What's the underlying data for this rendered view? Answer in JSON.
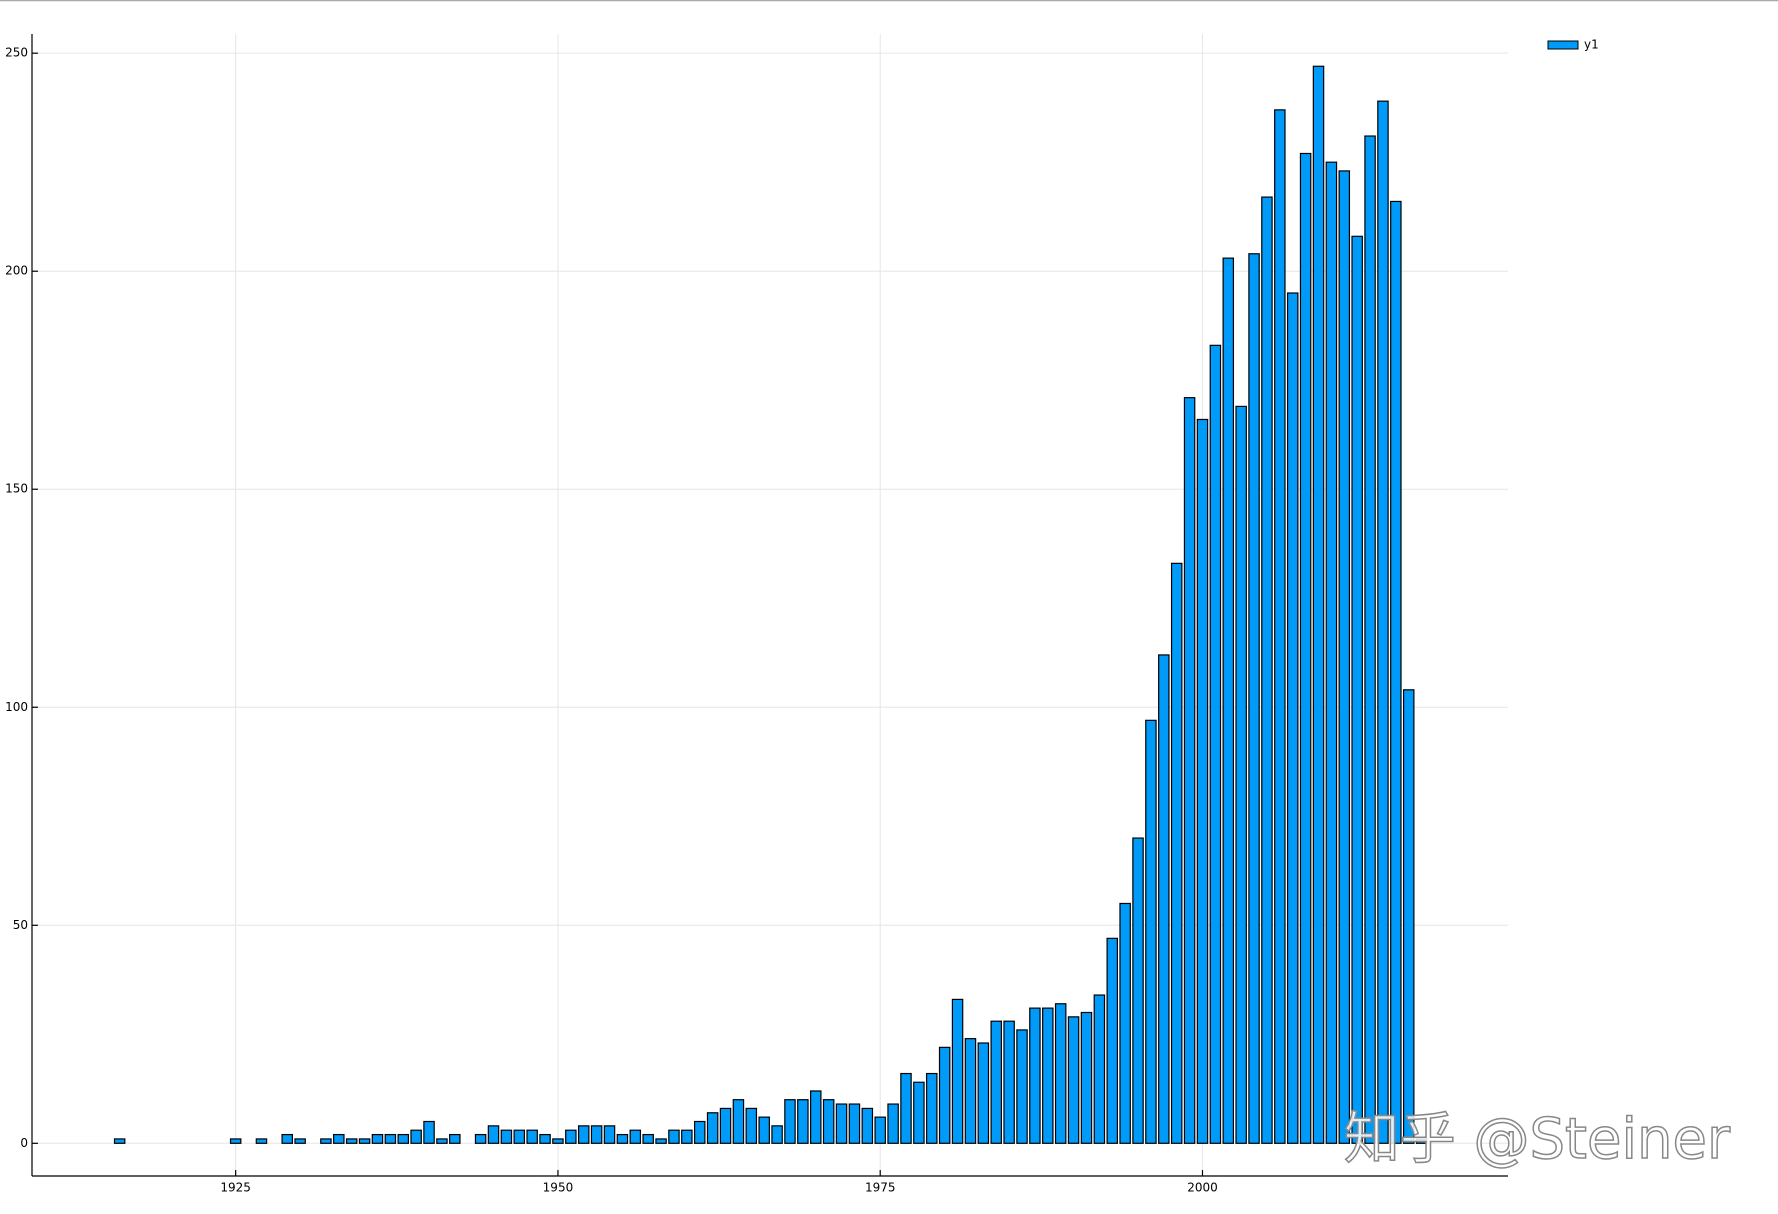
{
  "chart_data": {
    "type": "bar",
    "x": [
      1916,
      1925,
      1927,
      1929,
      1930,
      1932,
      1933,
      1934,
      1935,
      1936,
      1937,
      1938,
      1939,
      1940,
      1941,
      1942,
      1944,
      1945,
      1946,
      1947,
      1948,
      1949,
      1950,
      1951,
      1952,
      1953,
      1954,
      1955,
      1956,
      1957,
      1958,
      1959,
      1960,
      1961,
      1962,
      1963,
      1964,
      1965,
      1966,
      1967,
      1968,
      1969,
      1970,
      1971,
      1972,
      1973,
      1974,
      1975,
      1976,
      1977,
      1978,
      1979,
      1980,
      1981,
      1982,
      1983,
      1984,
      1985,
      1986,
      1987,
      1988,
      1989,
      1990,
      1991,
      1992,
      1993,
      1994,
      1995,
      1996,
      1997,
      1998,
      1999,
      2000,
      2001,
      2002,
      2003,
      2004,
      2005,
      2006,
      2007,
      2008,
      2009,
      2010,
      2011,
      2012,
      2013,
      2014,
      2015,
      2016,
      2017
    ],
    "series": [
      {
        "name": "y1",
        "color": "#009af9",
        "values": [
          1,
          1,
          1,
          2,
          1,
          1,
          2,
          1,
          1,
          2,
          2,
          2,
          3,
          5,
          1,
          2,
          2,
          4,
          3,
          3,
          3,
          2,
          1,
          3,
          4,
          4,
          4,
          2,
          3,
          2,
          1,
          3,
          3,
          5,
          7,
          8,
          10,
          8,
          6,
          4,
          10,
          10,
          12,
          10,
          9,
          9,
          8,
          6,
          9,
          16,
          14,
          16,
          22,
          33,
          24,
          23,
          28,
          28,
          26,
          31,
          31,
          32,
          29,
          30,
          34,
          47,
          55,
          70,
          97,
          112,
          133,
          171,
          166,
          183,
          203,
          169,
          204,
          217,
          237,
          195,
          227,
          247,
          225,
          223,
          208,
          231,
          239,
          216,
          104,
          1
        ]
      }
    ],
    "xlim": [
      1909.2,
      2023.7
    ],
    "ylim": [
      -7.5,
      254.4
    ],
    "xticks": [
      1925,
      1950,
      1975,
      2000
    ],
    "yticks": [
      0,
      50,
      100,
      150,
      200,
      250
    ],
    "grid": true,
    "legend": "top-right",
    "watermark": "知乎 @Steiner"
  }
}
